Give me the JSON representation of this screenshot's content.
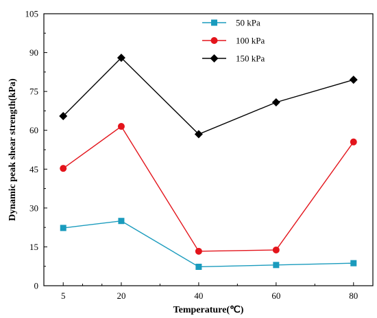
{
  "chart_data": {
    "type": "line",
    "title": "",
    "xlabel": "Temperature(℃)",
    "ylabel": "Dynamic peak shear strength(kPa)",
    "x": [
      5,
      20,
      40,
      60,
      80
    ],
    "xticks": [
      "5",
      "20",
      "40",
      "60",
      "80"
    ],
    "yticks": [
      "0",
      "15",
      "30",
      "45",
      "60",
      "75",
      "90",
      "105"
    ],
    "ylim": [
      0,
      105
    ],
    "grid": false,
    "legend_position": "top-center",
    "series": [
      {
        "name": "50 kPa",
        "values": [
          22.3,
          25.0,
          7.3,
          8.0,
          8.7
        ],
        "color": "#1a9bbd",
        "marker": "square"
      },
      {
        "name": "100 kPa",
        "values": [
          45.3,
          61.5,
          13.3,
          13.8,
          55.5
        ],
        "color": "#e3141b",
        "marker": "circle"
      },
      {
        "name": "150 kPa",
        "values": [
          65.5,
          88.0,
          58.5,
          70.8,
          79.5
        ],
        "color": "#000000",
        "marker": "diamond"
      }
    ]
  }
}
